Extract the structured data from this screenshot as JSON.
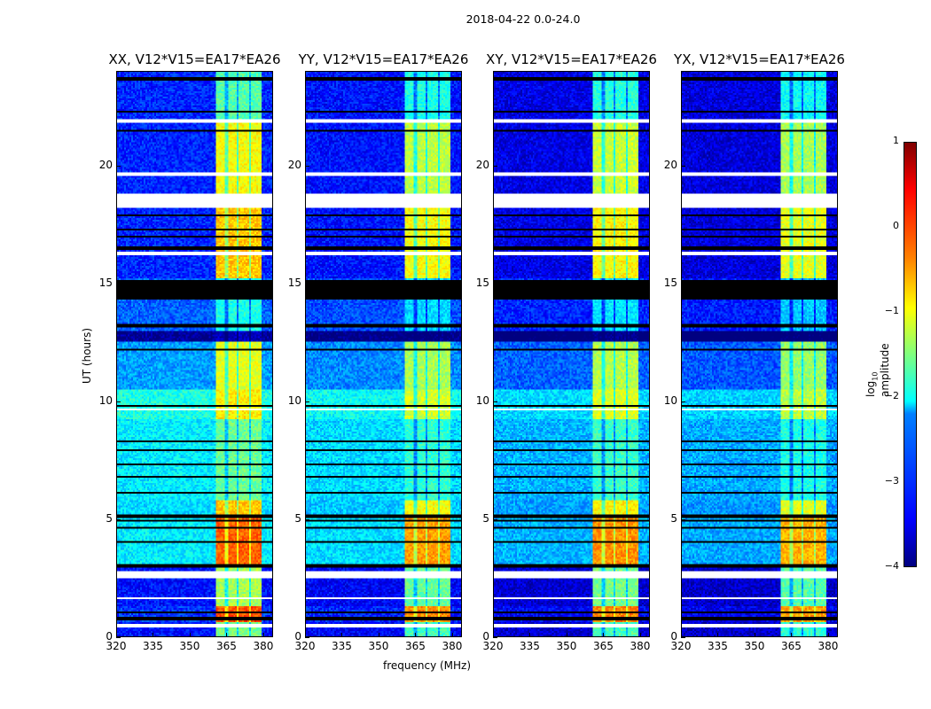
{
  "suptitle": "2018-04-22 0.0-24.0",
  "chart_data": {
    "type": "heatmap",
    "title": "2018-04-22 0.0-24.0",
    "xlabel": "frequency (MHz)",
    "ylabel": "UT (hours)",
    "xlim": [
      320,
      384
    ],
    "ylim": [
      0,
      24
    ],
    "xticks": [
      "320",
      "335",
      "350",
      "365",
      "380"
    ],
    "xtick_values": [
      320,
      335,
      350,
      365,
      380
    ],
    "yticks": [
      "0",
      "5",
      "10",
      "15",
      "20"
    ],
    "ytick_values": [
      0,
      5,
      10,
      15,
      20
    ],
    "panels": [
      {
        "title": "XX, V12*V15=EA17*EA26",
        "band_offset": 0.3,
        "bg_offset": 0.1
      },
      {
        "title": "YY, V12*V15=EA17*EA26",
        "band_offset": 0.0,
        "bg_offset": 0.0
      },
      {
        "title": "XY, V12*V15=EA17*EA26",
        "band_offset": 0.05,
        "bg_offset": -0.2
      },
      {
        "title": "YX, V12*V15=EA17*EA26",
        "band_offset": -0.1,
        "bg_offset": -0.25
      }
    ],
    "rfi_band_mhz": [
      360.5,
      379.6
    ],
    "rfi_subband_gaps_mhz": [
      365,
      370,
      375
    ],
    "segments_hours_bg_band_log10": [
      [
        0,
        0.6,
        -3.4,
        -1.8
      ],
      [
        0.6,
        1.3,
        -3.2,
        -0.3
      ],
      [
        1.3,
        3.0,
        -3.4,
        -1.6
      ],
      [
        3.0,
        5.0,
        -2.3,
        -0.4
      ],
      [
        5.0,
        5.8,
        -2.4,
        -0.9
      ],
      [
        5.8,
        9.2,
        -2.3,
        -1.9
      ],
      [
        9.2,
        10.5,
        -2.1,
        -1.1
      ],
      [
        10.5,
        12.5,
        -2.7,
        -1.3
      ],
      [
        12.5,
        13.0,
        -4.0,
        -4.0
      ],
      [
        13.0,
        15.2,
        -3.0,
        -2.3
      ],
      [
        15.2,
        18.2,
        -3.3,
        -0.9
      ],
      [
        18.8,
        21.8,
        -3.3,
        -1.2
      ],
      [
        21.8,
        24,
        -3.3,
        -2.0
      ]
    ],
    "flagged_hours": [
      [
        0.35,
        0.5
      ],
      [
        1.55,
        1.65
      ],
      [
        2.45,
        2.75
      ],
      [
        9.6,
        9.67
      ],
      [
        16.2,
        16.35
      ],
      [
        18.2,
        18.8
      ],
      [
        19.6,
        19.75
      ],
      [
        21.85,
        21.95
      ],
      [
        23.3,
        23.36
      ]
    ],
    "dropout_hours": [
      0.75,
      1.0,
      3.0,
      4.0,
      4.6,
      4.9,
      5.1,
      6.1,
      6.8,
      7.3,
      7.9,
      8.3,
      9.8,
      12.2,
      13.2,
      14.4,
      14.5,
      14.6,
      14.7,
      14.8,
      14.9,
      15.0,
      15.1,
      16.5,
      17.0,
      17.3,
      17.9,
      21.5,
      22.3,
      23.7
    ],
    "colorbar": {
      "label": "log10 amplitude",
      "label_main": "log",
      "label_sub": "10",
      "label_rest": " amplitude",
      "range": [
        -4,
        1
      ],
      "ticks": [
        "1",
        "0",
        "−1",
        "−2",
        "−3",
        "−4"
      ],
      "tick_values": [
        1,
        0,
        -1,
        -2,
        -3,
        -4
      ],
      "colormap": "jet"
    }
  }
}
